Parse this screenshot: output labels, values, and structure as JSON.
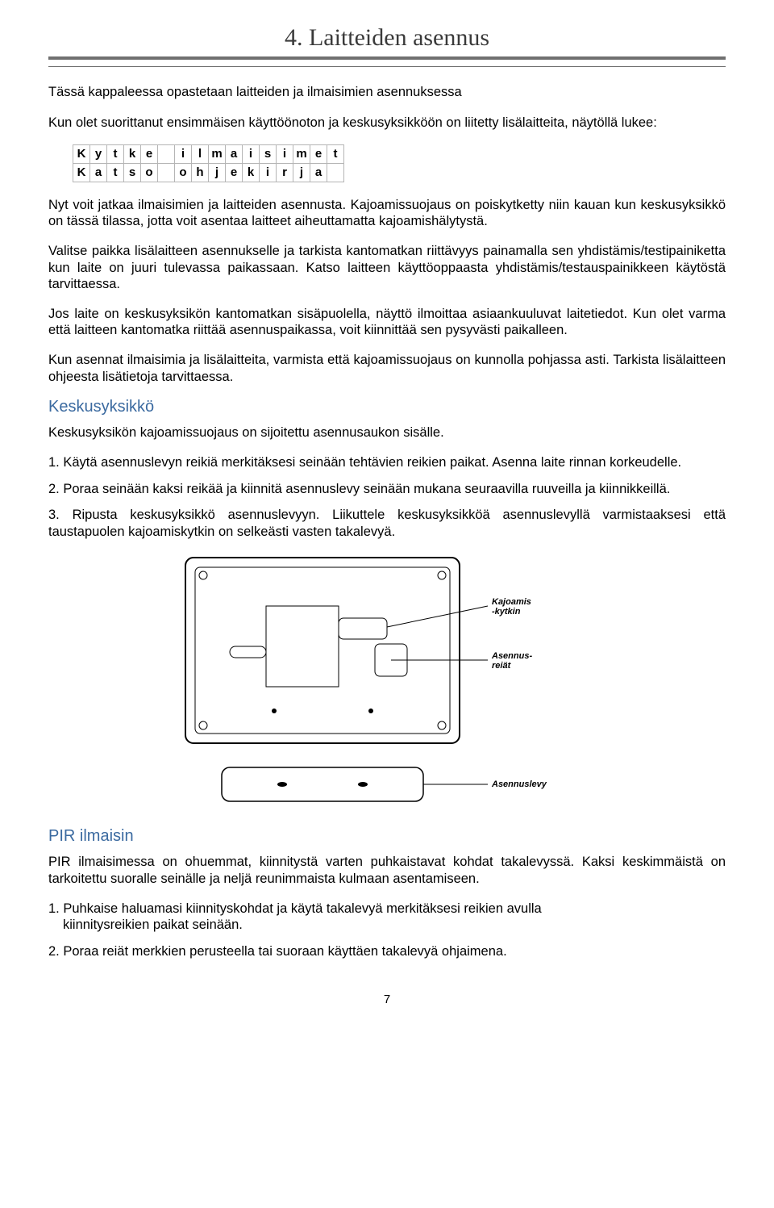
{
  "title": "4. Laitteiden asennus",
  "intro": "Tässä kappaleessa opastetaan laitteiden ja ilmaisimien asennuksessa",
  "intro2": "Kun olet suorittanut ensimmäisen käyttöönoton ja keskusyksikköön on liitetty lisälaitteita, näytöllä lukee:",
  "lcd": {
    "row1": [
      "K",
      "y",
      "t",
      "k",
      "e",
      "",
      "i",
      "l",
      "m",
      "a",
      "i",
      "s",
      "i",
      "m",
      "e",
      "t"
    ],
    "row2": [
      "K",
      "a",
      "t",
      "s",
      "o",
      "",
      "o",
      "h",
      "j",
      "e",
      "k",
      "i",
      "r",
      "j",
      "a",
      ""
    ]
  },
  "p1": "Nyt voit jatkaa ilmaisimien ja laitteiden asennusta. Kajoamissuojaus on poiskytketty niin kauan kun keskusyksikkö on tässä tilassa, jotta voit asentaa laitteet aiheuttamatta kajoamishälytystä.",
  "p2": "Valitse paikka lisälaitteen asennukselle ja tarkista kantomatkan riittävyys painamalla sen yhdistämis/testipainiketta kun laite on juuri tulevassa paikassaan. Katso laitteen käyttöoppaasta yhdistämis/testauspainikkeen käytöstä tarvittaessa.",
  "p3": "Jos laite on keskusyksikön kantomatkan sisäpuolella, näyttö ilmoittaa asiaankuuluvat laitetiedot. Kun olet varma että laitteen kantomatka riittää asennuspaikassa, voit kiinnittää sen pysyvästi paikalleen.",
  "p4": "Kun asennat ilmaisimia ja lisälaitteita, varmista että kajoamissuojaus on kunnolla pohjassa asti. Tarkista lisälaitteen ohjeesta lisätietoja tarvittaessa.",
  "h_kes": "Keskusyksikkö",
  "kes_intro": "Keskusyksikön kajoamissuojaus on sijoitettu asennusaukon sisälle.",
  "kes_1": "1. Käytä asennuslevyn reikiä merkitäksesi seinään tehtävien reikien paikat. Asenna laite rinnan korkeudelle.",
  "kes_2": "2. Poraa seinään kaksi reikää ja kiinnitä asennuslevy seinään mukana seuraavilla ruuveilla ja kiinnikkeillä.",
  "kes_3": "3. Ripusta keskusyksikkö asennuslevyyn. Liikuttele keskusyksikköä asennuslevyllä varmistaaksesi että taustapuolen kajoamiskytkin on selkeästi vasten takalevyä.",
  "diag": {
    "label_tamper": "Kajoamis\n-kytkin",
    "label_holes": "Asennus-\nreiät",
    "label_plate": "Asennuslevy"
  },
  "h_pir": "PIR ilmaisin",
  "pir_intro": "PIR ilmaisimessa on ohuemmat, kiinnitystä varten puhkaistavat kohdat takalevyssä. Kaksi keskimmäistä on tarkoitettu suoralle seinälle ja neljä reunimmaista kulmaan asentamiseen.",
  "pir_1a": "1.  Puhkaise haluamasi kiinnityskohdat ja käytä takalevyä merkitäksesi reikien avulla",
  "pir_1b": "kiinnitysreikien paikat seinään.",
  "pir_2": "2. Poraa reiät merkkien perusteella tai suoraan käyttäen takalevyä ohjaimena.",
  "page_number": "7",
  "colors": {
    "heading_blue": "#3b6aa0",
    "rule_gray": "#707070",
    "cell_border": "#b5b5b5",
    "diagram_stroke": "#000000",
    "diagram_inner_fill": "#ffffff"
  }
}
